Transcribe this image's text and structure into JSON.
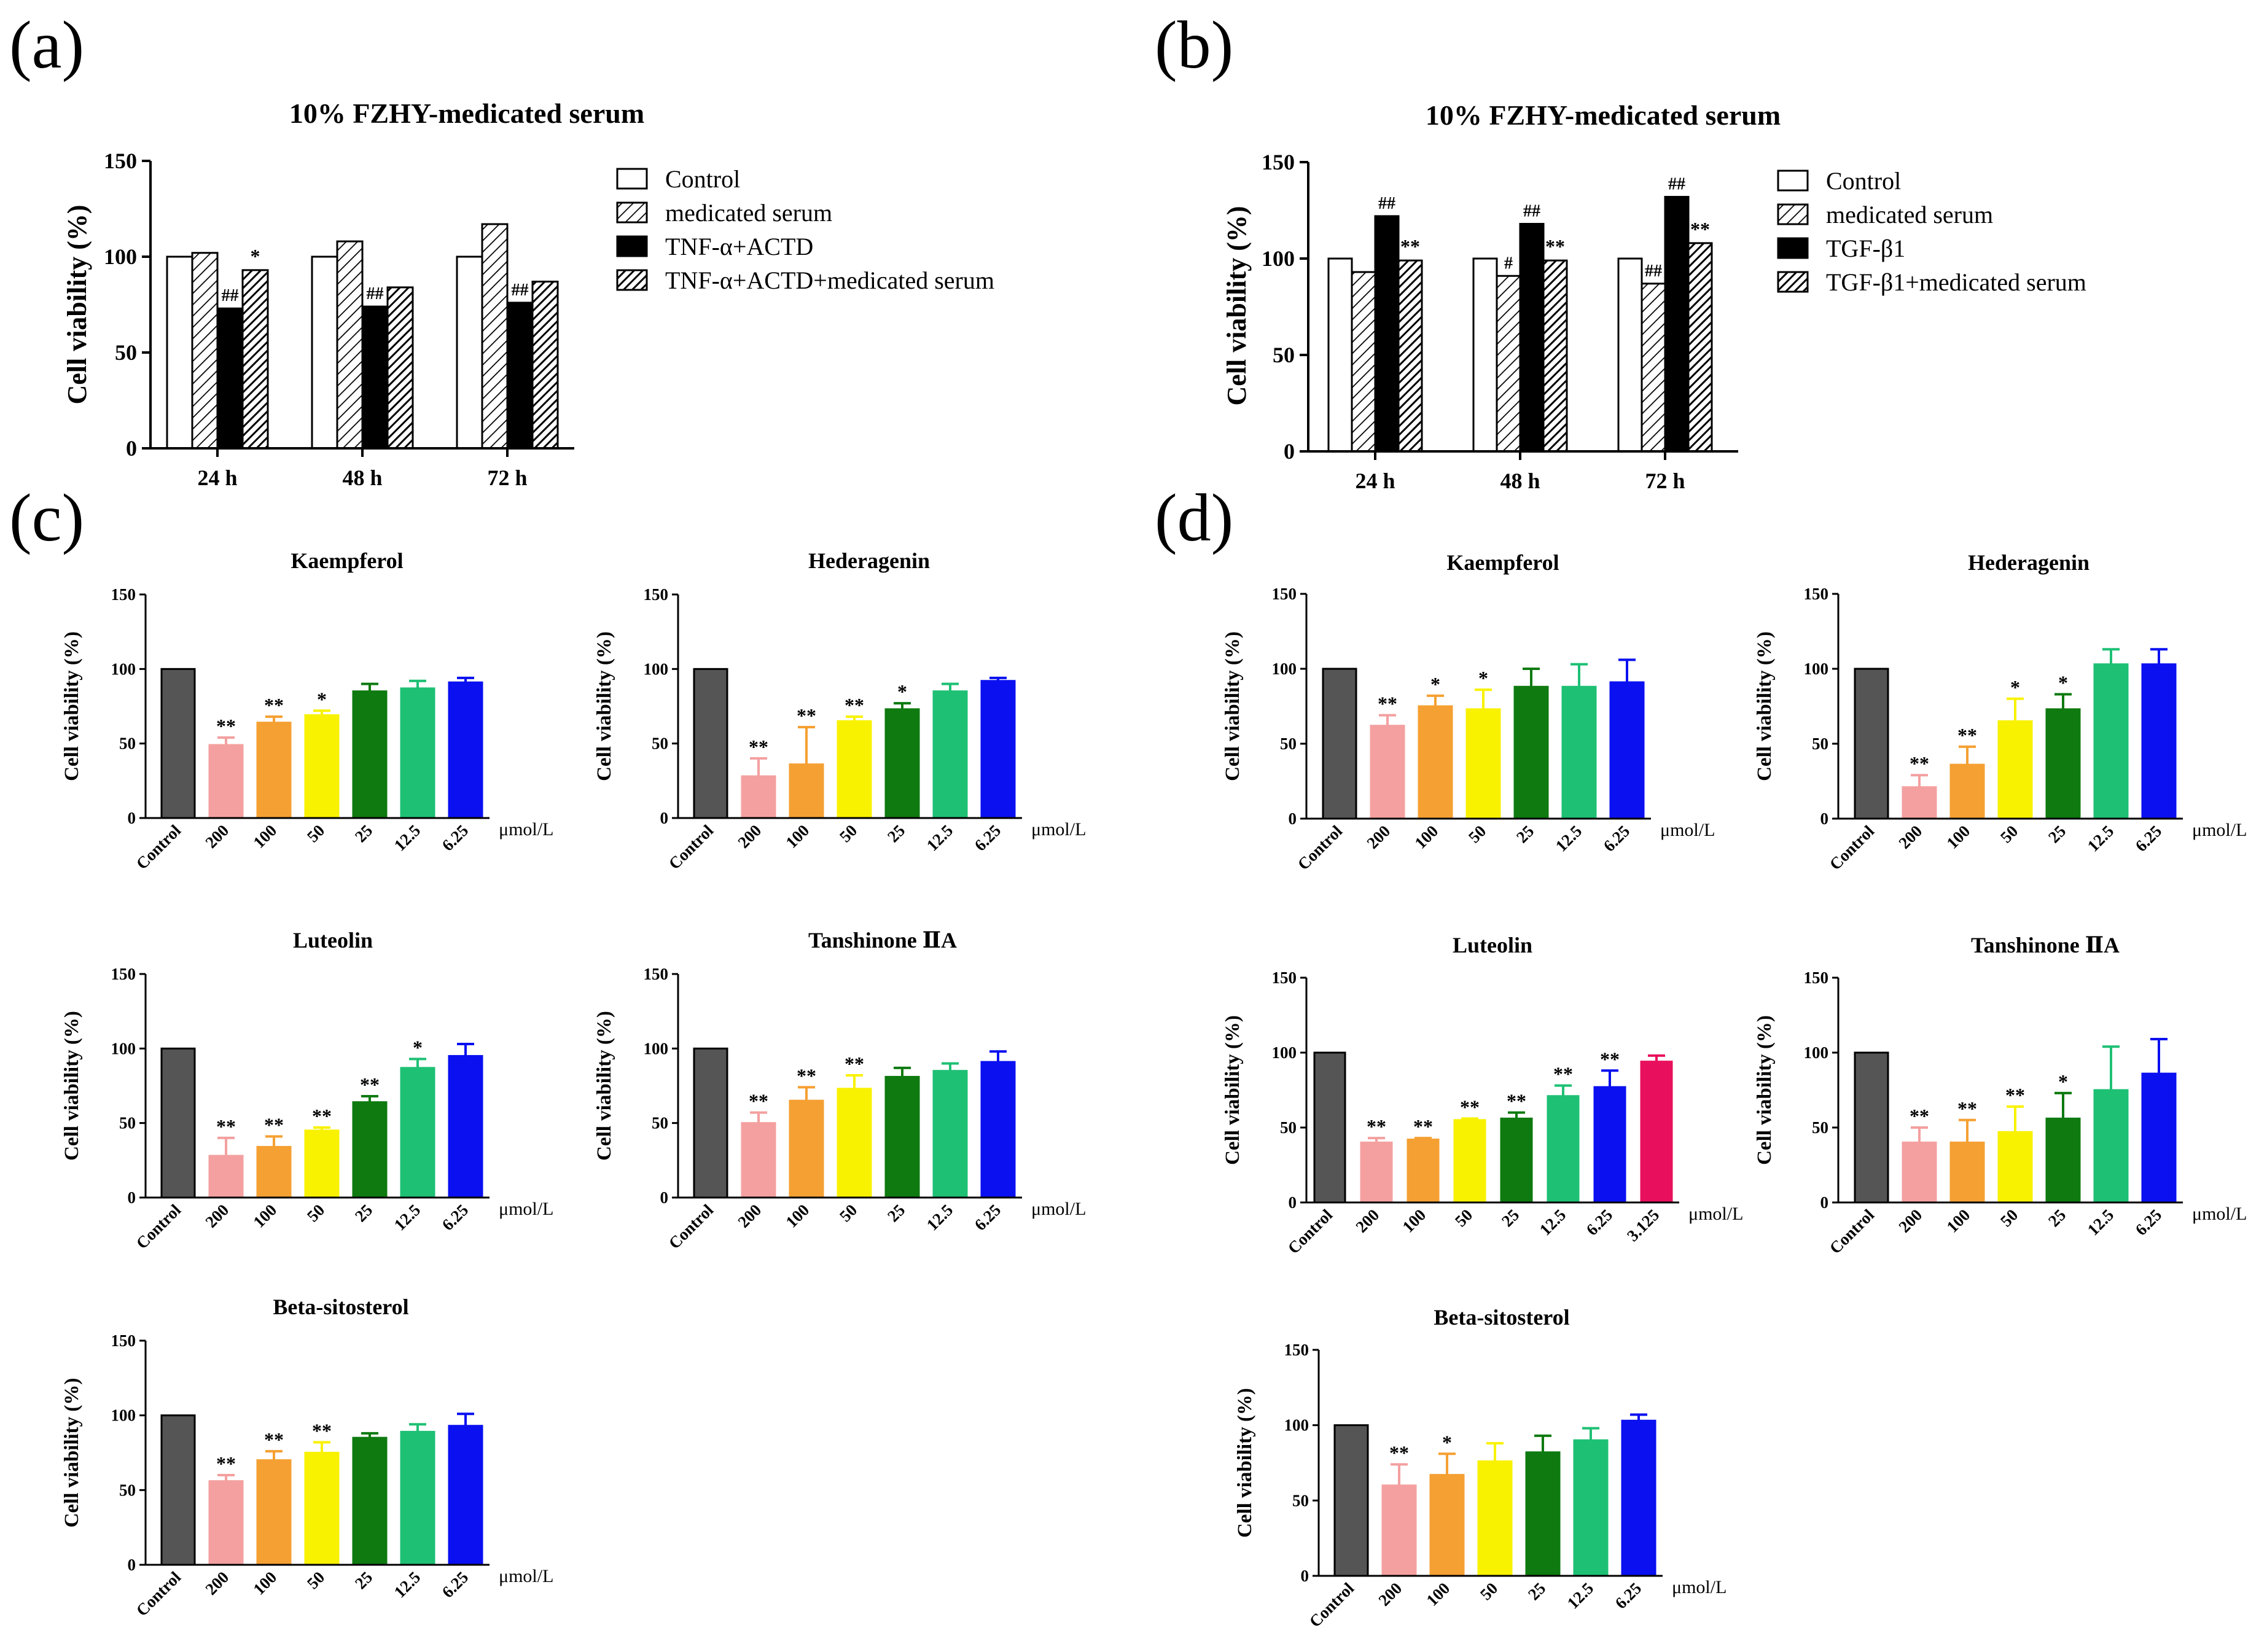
{
  "chart_data": [
    {
      "id": "a",
      "panel_label": "(a)",
      "type": "bar",
      "title": "10% FZHY-medicated serum",
      "ylabel": "Cell viability (%)",
      "xlabel": "",
      "ylim": [
        0,
        150
      ],
      "yticks": [
        0,
        50,
        100,
        150
      ],
      "categories": [
        "24 h",
        "48 h",
        "72 h"
      ],
      "legend_position": "right",
      "series": [
        {
          "name": "Control",
          "pattern": "white",
          "values": [
            100,
            100,
            100
          ],
          "marks": [
            "",
            "",
            ""
          ]
        },
        {
          "name": "medicated serum",
          "pattern": "hatch",
          "values": [
            102,
            108,
            117
          ],
          "marks": [
            "",
            "",
            ""
          ]
        },
        {
          "name": "TNF-α+ACTD",
          "pattern": "black",
          "values": [
            73,
            74,
            76
          ],
          "marks": [
            "##",
            "##",
            "##"
          ]
        },
        {
          "name": "TNF-α+ACTD+medicated serum",
          "pattern": "darkhatch",
          "values": [
            93,
            84,
            87
          ],
          "marks": [
            "*",
            "",
            ""
          ]
        }
      ]
    },
    {
      "id": "b",
      "panel_label": "(b)",
      "type": "bar",
      "title": "10% FZHY-medicated serum",
      "ylabel": "Cell viability (%)",
      "xlabel": "",
      "ylim": [
        0,
        150
      ],
      "yticks": [
        0,
        50,
        100,
        150
      ],
      "categories": [
        "24 h",
        "48 h",
        "72 h"
      ],
      "legend_position": "right",
      "series": [
        {
          "name": "Control",
          "pattern": "white",
          "values": [
            100,
            100,
            100
          ],
          "marks": [
            "",
            "",
            ""
          ]
        },
        {
          "name": "medicated serum",
          "pattern": "hatch",
          "values": [
            93,
            91,
            87
          ],
          "marks": [
            "",
            "#",
            "##"
          ]
        },
        {
          "name": "TGF-β1",
          "pattern": "black",
          "values": [
            122,
            118,
            132
          ],
          "marks": [
            "##",
            "##",
            "##"
          ]
        },
        {
          "name": "TGF-β1+medicated serum",
          "pattern": "darkhatch",
          "values": [
            99,
            99,
            108
          ],
          "marks": [
            "**",
            "**",
            "**"
          ]
        }
      ]
    },
    {
      "id": "c1",
      "panel_label": "(c)",
      "type": "bar",
      "title": "Kaempferol",
      "ylabel": "Cell viability (%)",
      "unit": "μmol/L",
      "ylim": [
        0,
        150
      ],
      "yticks": [
        0,
        50,
        100,
        150
      ],
      "categories": [
        "Control",
        "200",
        "100",
        "50",
        "25",
        "12.5",
        "6.25"
      ],
      "values": [
        100,
        49,
        64,
        69,
        85,
        87,
        91
      ],
      "errors": [
        0,
        5,
        4,
        3,
        5,
        5,
        3
      ],
      "marks": [
        "",
        "**",
        "**",
        "*",
        "",
        "",
        ""
      ]
    },
    {
      "id": "c2",
      "type": "bar",
      "title": "Hederagenin",
      "ylabel": "Cell viability (%)",
      "unit": "μmol/L",
      "ylim": [
        0,
        150
      ],
      "yticks": [
        0,
        50,
        100,
        150
      ],
      "categories": [
        "Control",
        "200",
        "100",
        "50",
        "25",
        "12.5",
        "6.25"
      ],
      "values": [
        100,
        28,
        36,
        65,
        73,
        85,
        92
      ],
      "errors": [
        0,
        12,
        25,
        3,
        4,
        5,
        2
      ],
      "marks": [
        "",
        "**",
        "**",
        "**",
        "*",
        "",
        ""
      ]
    },
    {
      "id": "c3",
      "type": "bar",
      "title": "Luteolin",
      "ylabel": "Cell viability (%)",
      "unit": "μmol/L",
      "ylim": [
        0,
        150
      ],
      "yticks": [
        0,
        50,
        100,
        150
      ],
      "categories": [
        "Control",
        "200",
        "100",
        "50",
        "25",
        "12.5",
        "6.25"
      ],
      "values": [
        100,
        28,
        34,
        45,
        64,
        87,
        95
      ],
      "errors": [
        0,
        12,
        7,
        2,
        4,
        6,
        8
      ],
      "marks": [
        "",
        "**",
        "**",
        "**",
        "**",
        "*",
        ""
      ]
    },
    {
      "id": "c4",
      "type": "bar",
      "title": "Tanshinone ⅡA",
      "ylabel": "Cell viability (%)",
      "unit": "μmol/L",
      "ylim": [
        0,
        150
      ],
      "yticks": [
        0,
        50,
        100,
        150
      ],
      "categories": [
        "Control",
        "200",
        "100",
        "50",
        "25",
        "12.5",
        "6.25"
      ],
      "values": [
        100,
        50,
        65,
        73,
        81,
        85,
        91
      ],
      "errors": [
        0,
        7,
        9,
        9,
        6,
        5,
        7
      ],
      "marks": [
        "",
        "**",
        "**",
        "**",
        "",
        "",
        ""
      ]
    },
    {
      "id": "c5",
      "type": "bar",
      "title": "Beta-sitosterol",
      "ylabel": "Cell viability (%)",
      "unit": "μmol/L",
      "ylim": [
        0,
        150
      ],
      "yticks": [
        0,
        50,
        100,
        150
      ],
      "categories": [
        "Control",
        "200",
        "100",
        "50",
        "25",
        "12.5",
        "6.25"
      ],
      "values": [
        100,
        56,
        70,
        75,
        85,
        89,
        93
      ],
      "errors": [
        0,
        4,
        6,
        7,
        3,
        5,
        8
      ],
      "marks": [
        "",
        "**",
        "**",
        "**",
        "",
        "",
        ""
      ]
    },
    {
      "id": "d1",
      "panel_label": "(d)",
      "type": "bar",
      "title": "Kaempferol",
      "ylabel": "Cell viability (%)",
      "unit": "μmol/L",
      "ylim": [
        0,
        150
      ],
      "yticks": [
        0,
        50,
        100,
        150
      ],
      "categories": [
        "Control",
        "200",
        "100",
        "50",
        "25",
        "12.5",
        "6.25"
      ],
      "values": [
        100,
        62,
        75,
        73,
        88,
        88,
        91
      ],
      "errors": [
        0,
        7,
        7,
        13,
        12,
        15,
        15
      ],
      "marks": [
        "",
        "**",
        "*",
        "*",
        "",
        "",
        ""
      ]
    },
    {
      "id": "d2",
      "type": "bar",
      "title": "Hederagenin",
      "ylabel": "Cell viability (%)",
      "unit": "μmol/L",
      "ylim": [
        0,
        150
      ],
      "yticks": [
        0,
        50,
        100,
        150
      ],
      "categories": [
        "Control",
        "200",
        "100",
        "50",
        "25",
        "12.5",
        "6.25"
      ],
      "values": [
        100,
        21,
        36,
        65,
        73,
        103,
        103
      ],
      "errors": [
        0,
        8,
        12,
        15,
        10,
        10,
        10
      ],
      "marks": [
        "",
        "**",
        "**",
        "*",
        "*",
        "",
        ""
      ]
    },
    {
      "id": "d3",
      "type": "bar",
      "title": "Luteolin",
      "ylabel": "Cell viability (%)",
      "unit": "μmol/L",
      "ylim": [
        0,
        150
      ],
      "yticks": [
        0,
        50,
        100,
        150
      ],
      "categories": [
        "Control",
        "200",
        "100",
        "50",
        "25",
        "12.5",
        "6.25",
        "3.125"
      ],
      "values": [
        100,
        40,
        42,
        55,
        56,
        71,
        77,
        94
      ],
      "errors": [
        0,
        3,
        1,
        1,
        4,
        7,
        11,
        4
      ],
      "marks": [
        "",
        "**",
        "**",
        "**",
        "**",
        "**",
        "**",
        ""
      ]
    },
    {
      "id": "d4",
      "type": "bar",
      "title": "Tanshinone ⅡA",
      "ylabel": "Cell viability (%)",
      "unit": "μmol/L",
      "ylim": [
        0,
        150
      ],
      "yticks": [
        0,
        50,
        100,
        150
      ],
      "categories": [
        "Control",
        "200",
        "100",
        "50",
        "25",
        "12.5",
        "6.25"
      ],
      "values": [
        100,
        40,
        40,
        47,
        56,
        75,
        86
      ],
      "errors": [
        0,
        10,
        15,
        17,
        17,
        29,
        23
      ],
      "marks": [
        "",
        "**",
        "**",
        "**",
        "*",
        "",
        ""
      ]
    },
    {
      "id": "d5",
      "type": "bar",
      "title": "Beta-sitosterol",
      "ylabel": "Cell viability (%)",
      "unit": "μmol/L",
      "ylim": [
        0,
        150
      ],
      "yticks": [
        0,
        50,
        100,
        150
      ],
      "categories": [
        "Control",
        "200",
        "100",
        "50",
        "25",
        "12.5",
        "6.25"
      ],
      "values": [
        100,
        60,
        67,
        76,
        82,
        90,
        103
      ],
      "errors": [
        0,
        14,
        14,
        12,
        11,
        8,
        4
      ],
      "marks": [
        "",
        "**",
        "*",
        "",
        "",
        "",
        ""
      ]
    }
  ],
  "colors": {
    "control": "#555555",
    "dose_200": "#f4a0a0",
    "dose_100": "#f5a033",
    "dose_50": "#f8f200",
    "dose_25": "#0e7a10",
    "dose_12_5": "#1ec074",
    "dose_6_25": "#0a10f0",
    "dose_3_125": "#e8105c"
  }
}
